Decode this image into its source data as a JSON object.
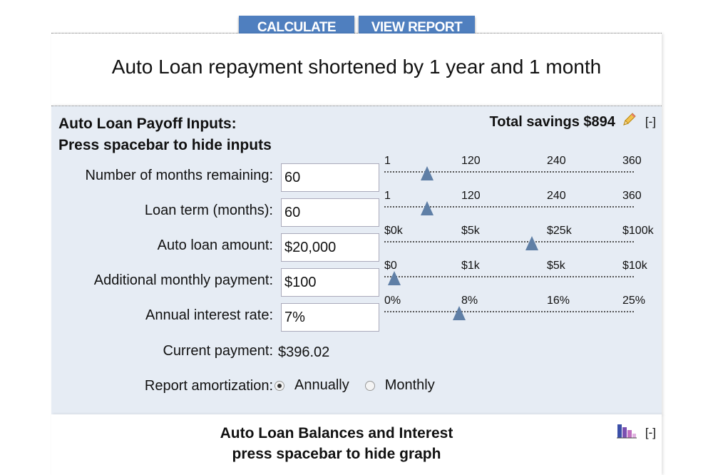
{
  "toolbar": {
    "calculate_label": "CALCULATE",
    "view_report_label": "VIEW REPORT"
  },
  "headline": "Auto Loan repayment shortened by 1 year and 1 month",
  "inputs_panel": {
    "title_line1": "Auto Loan Payoff Inputs:",
    "title_line2": "Press spacebar to hide inputs",
    "savings_text": "Total savings $894",
    "collapse_label": "[-]"
  },
  "rows": [
    {
      "label": "Number of months remaining:",
      "value": "60",
      "ticks": [
        "1",
        "120",
        "240",
        "360"
      ],
      "thumb_fraction": 0.17
    },
    {
      "label": "Loan term (months):",
      "value": "60",
      "ticks": [
        "1",
        "120",
        "240",
        "360"
      ],
      "thumb_fraction": 0.17
    },
    {
      "label": "Auto loan amount:",
      "value": "$20,000",
      "ticks": [
        "$0k",
        "$5k",
        "$25k",
        "$100k"
      ],
      "thumb_fraction": 0.59
    },
    {
      "label": "Additional monthly payment:",
      "value": "$100",
      "ticks": [
        "$0",
        "$1k",
        "$5k",
        "$10k"
      ],
      "thumb_fraction": 0.04
    },
    {
      "label": "Annual interest rate:",
      "value": "7%",
      "ticks": [
        "0%",
        "8%",
        "16%",
        "25%"
      ],
      "thumb_fraction": 0.3
    }
  ],
  "current_payment": {
    "label": "Current payment:",
    "value": "$396.02"
  },
  "amortization": {
    "label": "Report amortization:",
    "options": [
      "Annually",
      "Monthly"
    ],
    "selected": "Annually"
  },
  "graph_panel": {
    "title_line1": "Auto Loan Balances and Interest",
    "title_line2": "press spacebar to hide graph",
    "collapse_label": "[-]"
  },
  "colors": {
    "button_blue": "#4f7fbf",
    "panel_bg": "#e6ecf4",
    "thumb": "#5f7fa6"
  }
}
